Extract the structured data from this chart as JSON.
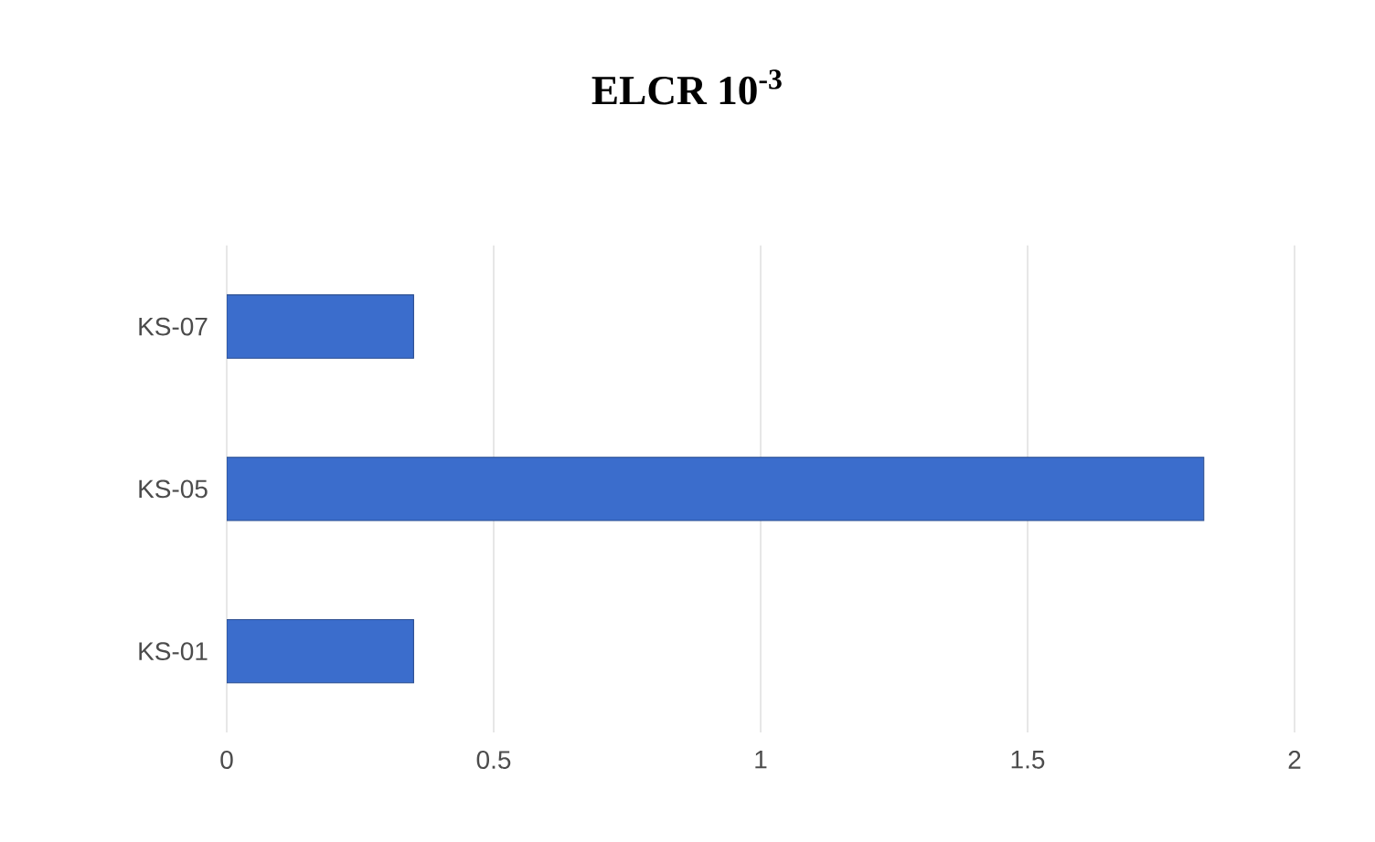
{
  "chart_data": {
    "type": "bar",
    "orientation": "horizontal",
    "title": "ELCR 10$^{-3}$",
    "categories": [
      "KS-07",
      "KS-05",
      "KS-01"
    ],
    "values": [
      0.35,
      1.83,
      0.35
    ],
    "color": "#3b6dcc",
    "xlim": [
      0,
      2
    ],
    "xticks": [
      0,
      0.5,
      1,
      1.5,
      2
    ],
    "grid": "x"
  }
}
